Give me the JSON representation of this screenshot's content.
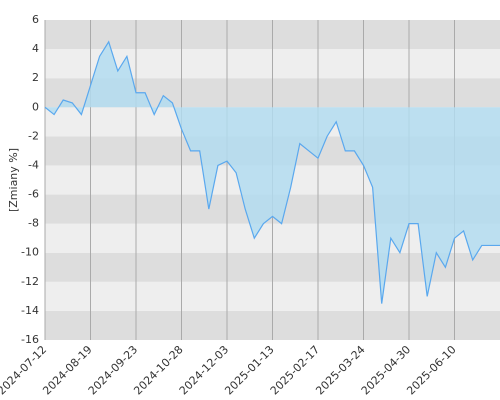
{
  "chart_data": {
    "type": "area",
    "y_label": "[Zmiany %]",
    "categories": [
      "2024-07-12",
      null,
      null,
      null,
      null,
      "2024-08-19",
      null,
      null,
      null,
      null,
      "2024-09-23",
      null,
      null,
      null,
      null,
      "2024-10-28",
      null,
      null,
      null,
      null,
      "2024-12-03",
      null,
      null,
      null,
      null,
      "2025-01-13",
      null,
      null,
      null,
      null,
      "2025-02-17",
      null,
      null,
      null,
      null,
      "2025-03-24",
      null,
      null,
      null,
      null,
      "2025-04-30",
      null,
      null,
      null,
      null,
      "2025-06-10",
      null,
      null,
      null,
      null,
      null
    ],
    "series": [
      {
        "name": "Zmiany",
        "color": "#5aa8ee",
        "fill": "#b3dcf0",
        "values": [
          0,
          -0.5,
          0.5,
          0.3,
          -0.5,
          1.5,
          3.5,
          4.5,
          2.5,
          3.5,
          1.0,
          1.0,
          -0.5,
          0.8,
          0.3,
          -1.5,
          -3.0,
          -3.0,
          -7.0,
          -4.0,
          -3.7,
          -4.5,
          -7.0,
          -9.0,
          -8.0,
          -7.5,
          -8.0,
          -5.5,
          -2.5,
          -3.0,
          -3.5,
          -2.0,
          -1.0,
          -3.0,
          -3.0,
          -4.0,
          -5.5,
          -13.5,
          -9.0,
          -10.0,
          -8.0,
          -8.0,
          -13.0,
          -10.0,
          -11.0,
          -9.0,
          -8.5,
          -10.5,
          -9.5,
          -9.5,
          -9.5
        ]
      }
    ],
    "ylim": [
      -16,
      6
    ],
    "yticks": [
      -16,
      -14,
      -12,
      -10,
      -8,
      -6,
      -4,
      -2,
      0,
      2,
      4,
      6
    ],
    "grid": true,
    "band_colors": [
      "#dddddd",
      "#eeeeee"
    ]
  }
}
